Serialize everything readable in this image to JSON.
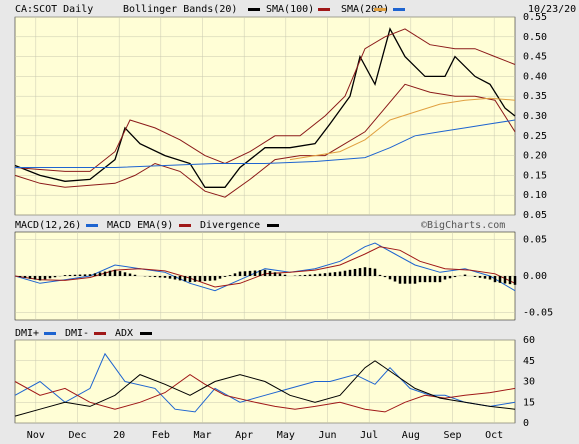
{
  "header": {
    "symbol": "CA:SCOT Daily",
    "date": "10/23/20",
    "legend": [
      {
        "label": "Bollinger Bands(20)",
        "color": "#000000"
      },
      {
        "label": "SMA(100)",
        "color": "#a01818"
      },
      {
        "label": "SMA(200)",
        "color": "#e0a040"
      },
      {
        "label": "",
        "color": "#1e64d0"
      }
    ]
  },
  "watermark": "©BigCharts.com",
  "colors": {
    "panel_bg": "#fffed6",
    "frame_bg": "#e8e8e8",
    "grid": "#c8c8b0",
    "price": "#000000",
    "bollinger": "#8b1a1a",
    "sma100": "#e0a040",
    "sma200": "#1e64d0",
    "macd": "#1e64d0",
    "macd_ema": "#a01818",
    "divergence": "#000000",
    "dmi_plus": "#1e64d0",
    "dmi_minus": "#a01818",
    "adx": "#000000"
  },
  "chart_data": [
    {
      "type": "line",
      "name": "price",
      "title": "CA:SCOT Daily",
      "x_labels": [
        "Nov",
        "Dec",
        "20",
        "Feb",
        "Mar",
        "Apr",
        "May",
        "Jun",
        "Jul",
        "Aug",
        "Sep",
        "Oct"
      ],
      "y_ticks": [
        "0.55",
        "0.50",
        "0.45",
        "0.40",
        "0.35",
        "0.30",
        "0.25",
        "0.20",
        "0.15",
        "0.10",
        "0.05"
      ],
      "ylim": [
        0.05,
        0.55
      ],
      "grid": true,
      "series": [
        {
          "name": "Price",
          "points": [
            [
              0,
              0.175
            ],
            [
              0.05,
              0.15
            ],
            [
              0.1,
              0.135
            ],
            [
              0.15,
              0.14
            ],
            [
              0.2,
              0.19
            ],
            [
              0.22,
              0.27
            ],
            [
              0.25,
              0.23
            ],
            [
              0.3,
              0.2
            ],
            [
              0.35,
              0.18
            ],
            [
              0.38,
              0.12
            ],
            [
              0.42,
              0.12
            ],
            [
              0.45,
              0.17
            ],
            [
              0.5,
              0.22
            ],
            [
              0.55,
              0.22
            ],
            [
              0.6,
              0.23
            ],
            [
              0.63,
              0.28
            ],
            [
              0.67,
              0.35
            ],
            [
              0.69,
              0.45
            ],
            [
              0.72,
              0.38
            ],
            [
              0.75,
              0.52
            ],
            [
              0.78,
              0.45
            ],
            [
              0.82,
              0.4
            ],
            [
              0.86,
              0.4
            ],
            [
              0.88,
              0.45
            ],
            [
              0.92,
              0.4
            ],
            [
              0.95,
              0.38
            ],
            [
              0.98,
              0.32
            ],
            [
              1.0,
              0.3
            ]
          ]
        },
        {
          "name": "Bollinger Upper",
          "points": [
            [
              0,
              0.17
            ],
            [
              0.05,
              0.165
            ],
            [
              0.1,
              0.16
            ],
            [
              0.15,
              0.16
            ],
            [
              0.2,
              0.21
            ],
            [
              0.23,
              0.29
            ],
            [
              0.28,
              0.27
            ],
            [
              0.33,
              0.24
            ],
            [
              0.38,
              0.2
            ],
            [
              0.42,
              0.18
            ],
            [
              0.47,
              0.21
            ],
            [
              0.52,
              0.25
            ],
            [
              0.57,
              0.25
            ],
            [
              0.62,
              0.3
            ],
            [
              0.66,
              0.35
            ],
            [
              0.7,
              0.47
            ],
            [
              0.74,
              0.5
            ],
            [
              0.78,
              0.52
            ],
            [
              0.83,
              0.48
            ],
            [
              0.88,
              0.47
            ],
            [
              0.92,
              0.47
            ],
            [
              0.96,
              0.45
            ],
            [
              1.0,
              0.43
            ]
          ]
        },
        {
          "name": "Bollinger Lower",
          "points": [
            [
              0,
              0.15
            ],
            [
              0.05,
              0.13
            ],
            [
              0.1,
              0.12
            ],
            [
              0.15,
              0.125
            ],
            [
              0.2,
              0.13
            ],
            [
              0.24,
              0.15
            ],
            [
              0.28,
              0.18
            ],
            [
              0.33,
              0.16
            ],
            [
              0.38,
              0.11
            ],
            [
              0.42,
              0.095
            ],
            [
              0.47,
              0.14
            ],
            [
              0.52,
              0.19
            ],
            [
              0.57,
              0.2
            ],
            [
              0.62,
              0.2
            ],
            [
              0.66,
              0.23
            ],
            [
              0.7,
              0.26
            ],
            [
              0.74,
              0.32
            ],
            [
              0.78,
              0.38
            ],
            [
              0.83,
              0.36
            ],
            [
              0.88,
              0.35
            ],
            [
              0.92,
              0.35
            ],
            [
              0.96,
              0.34
            ],
            [
              1.0,
              0.26
            ]
          ]
        },
        {
          "name": "SMA(100)",
          "points": [
            [
              0.55,
              0.19
            ],
            [
              0.6,
              0.2
            ],
            [
              0.65,
              0.21
            ],
            [
              0.7,
              0.24
            ],
            [
              0.75,
              0.29
            ],
            [
              0.8,
              0.31
            ],
            [
              0.85,
              0.33
            ],
            [
              0.9,
              0.34
            ],
            [
              0.95,
              0.345
            ],
            [
              1.0,
              0.34
            ]
          ]
        },
        {
          "name": "SMA(200)",
          "points": [
            [
              0,
              0.17
            ],
            [
              0.1,
              0.17
            ],
            [
              0.2,
              0.17
            ],
            [
              0.3,
              0.175
            ],
            [
              0.4,
              0.18
            ],
            [
              0.5,
              0.18
            ],
            [
              0.6,
              0.185
            ],
            [
              0.7,
              0.195
            ],
            [
              0.75,
              0.22
            ],
            [
              0.8,
              0.25
            ],
            [
              0.85,
              0.26
            ],
            [
              0.9,
              0.27
            ],
            [
              0.95,
              0.28
            ],
            [
              1.0,
              0.29
            ]
          ]
        }
      ]
    },
    {
      "type": "line",
      "name": "macd",
      "legend": [
        "MACD(12,26)",
        "MACD EMA(9)",
        "Divergence"
      ],
      "y_ticks": [
        "0.05",
        "0.00",
        "-0.05"
      ],
      "ylim": [
        -0.06,
        0.06
      ],
      "grid": true,
      "series": [
        {
          "name": "MACD",
          "points": [
            [
              0,
              0.0
            ],
            [
              0.05,
              -0.01
            ],
            [
              0.1,
              -0.005
            ],
            [
              0.15,
              0.0
            ],
            [
              0.2,
              0.015
            ],
            [
              0.25,
              0.01
            ],
            [
              0.3,
              0.005
            ],
            [
              0.35,
              -0.01
            ],
            [
              0.4,
              -0.02
            ],
            [
              0.45,
              -0.005
            ],
            [
              0.5,
              0.01
            ],
            [
              0.55,
              0.005
            ],
            [
              0.6,
              0.01
            ],
            [
              0.65,
              0.02
            ],
            [
              0.7,
              0.04
            ],
            [
              0.72,
              0.045
            ],
            [
              0.76,
              0.03
            ],
            [
              0.8,
              0.015
            ],
            [
              0.85,
              0.005
            ],
            [
              0.9,
              0.01
            ],
            [
              0.95,
              0.0
            ],
            [
              1.0,
              -0.02
            ]
          ]
        },
        {
          "name": "EMA",
          "points": [
            [
              0,
              0.0
            ],
            [
              0.05,
              -0.005
            ],
            [
              0.1,
              -0.006
            ],
            [
              0.15,
              -0.002
            ],
            [
              0.2,
              0.008
            ],
            [
              0.25,
              0.01
            ],
            [
              0.3,
              0.007
            ],
            [
              0.35,
              -0.003
            ],
            [
              0.4,
              -0.015
            ],
            [
              0.45,
              -0.01
            ],
            [
              0.5,
              0.003
            ],
            [
              0.55,
              0.005
            ],
            [
              0.6,
              0.008
            ],
            [
              0.65,
              0.015
            ],
            [
              0.7,
              0.03
            ],
            [
              0.73,
              0.04
            ],
            [
              0.77,
              0.035
            ],
            [
              0.81,
              0.02
            ],
            [
              0.86,
              0.01
            ],
            [
              0.91,
              0.008
            ],
            [
              0.96,
              0.003
            ],
            [
              1.0,
              -0.01
            ]
          ]
        }
      ]
    },
    {
      "type": "line",
      "name": "dmi",
      "legend": [
        "DMI+",
        "DMI-",
        "ADX"
      ],
      "y_ticks": [
        "60",
        "45",
        "30",
        "15",
        "0"
      ],
      "ylim": [
        0,
        60
      ],
      "grid": true,
      "series": [
        {
          "name": "DMI+",
          "points": [
            [
              0,
              20
            ],
            [
              0.05,
              30
            ],
            [
              0.1,
              15
            ],
            [
              0.15,
              25
            ],
            [
              0.18,
              50
            ],
            [
              0.22,
              30
            ],
            [
              0.28,
              25
            ],
            [
              0.32,
              10
            ],
            [
              0.36,
              8
            ],
            [
              0.4,
              25
            ],
            [
              0.45,
              15
            ],
            [
              0.5,
              20
            ],
            [
              0.55,
              25
            ],
            [
              0.6,
              30
            ],
            [
              0.63,
              30
            ],
            [
              0.68,
              35
            ],
            [
              0.72,
              28
            ],
            [
              0.75,
              40
            ],
            [
              0.79,
              25
            ],
            [
              0.83,
              20
            ],
            [
              0.86,
              20
            ],
            [
              0.9,
              15
            ],
            [
              0.95,
              12
            ],
            [
              1.0,
              15
            ]
          ]
        },
        {
          "name": "DMI-",
          "points": [
            [
              0,
              30
            ],
            [
              0.05,
              20
            ],
            [
              0.1,
              25
            ],
            [
              0.15,
              15
            ],
            [
              0.2,
              10
            ],
            [
              0.25,
              15
            ],
            [
              0.3,
              22
            ],
            [
              0.35,
              35
            ],
            [
              0.38,
              28
            ],
            [
              0.42,
              20
            ],
            [
              0.48,
              15
            ],
            [
              0.52,
              12
            ],
            [
              0.56,
              10
            ],
            [
              0.6,
              12
            ],
            [
              0.65,
              15
            ],
            [
              0.7,
              10
            ],
            [
              0.74,
              8
            ],
            [
              0.78,
              15
            ],
            [
              0.82,
              20
            ],
            [
              0.86,
              18
            ],
            [
              0.9,
              20
            ],
            [
              0.95,
              22
            ],
            [
              1.0,
              25
            ]
          ]
        },
        {
          "name": "ADX",
          "points": [
            [
              0,
              5
            ],
            [
              0.05,
              10
            ],
            [
              0.1,
              15
            ],
            [
              0.15,
              12
            ],
            [
              0.2,
              20
            ],
            [
              0.25,
              35
            ],
            [
              0.3,
              28
            ],
            [
              0.35,
              20
            ],
            [
              0.4,
              30
            ],
            [
              0.45,
              35
            ],
            [
              0.5,
              30
            ],
            [
              0.55,
              20
            ],
            [
              0.6,
              15
            ],
            [
              0.65,
              20
            ],
            [
              0.7,
              40
            ],
            [
              0.72,
              45
            ],
            [
              0.76,
              35
            ],
            [
              0.8,
              25
            ],
            [
              0.85,
              18
            ],
            [
              0.9,
              15
            ],
            [
              0.95,
              12
            ],
            [
              1.0,
              10
            ]
          ]
        }
      ]
    }
  ]
}
